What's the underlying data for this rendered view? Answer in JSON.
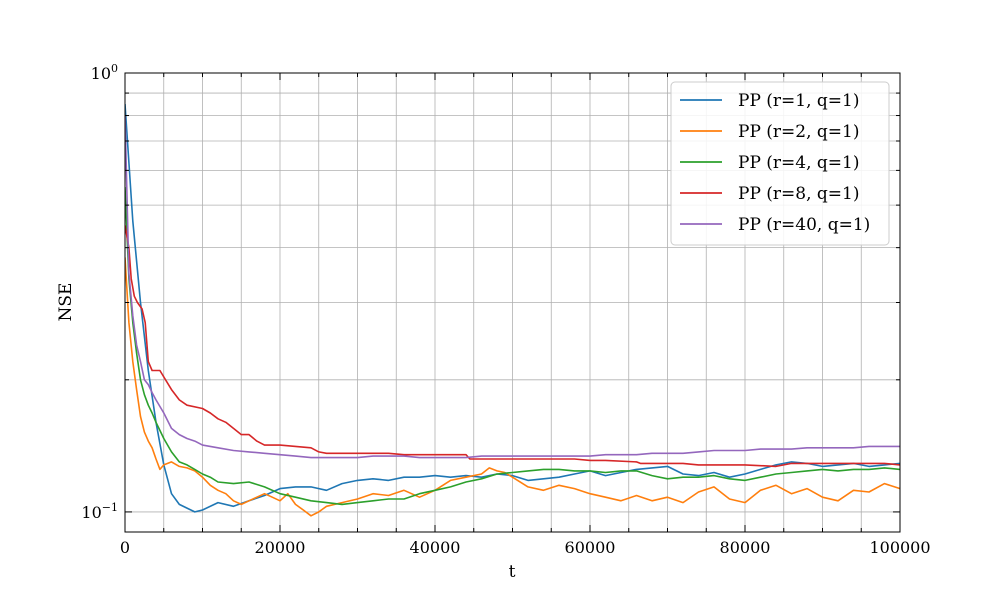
{
  "chart_data": {
    "type": "line",
    "title": "",
    "xlabel": "t",
    "ylabel": "NSE",
    "xlim": [
      0,
      100000
    ],
    "ylim": [
      0.09,
      1.0
    ],
    "y_scale": "log",
    "grid": true,
    "legend_position": "top-right",
    "x_ticks": [
      0,
      20000,
      40000,
      60000,
      80000,
      100000
    ],
    "x_tick_labels": [
      "0",
      "20000",
      "40000",
      "60000",
      "80000",
      "100000"
    ],
    "y_major_ticks": [
      {
        "value": 0.1,
        "base": "10",
        "exp": "−1"
      },
      {
        "value": 1.0,
        "base": "10",
        "exp": "0"
      }
    ],
    "series": [
      {
        "name": "PP (r=1, q=1)",
        "color": "#1f77b4",
        "x": [
          0,
          1000,
          2000,
          3000,
          4000,
          5000,
          6000,
          7000,
          8000,
          9000,
          10000,
          12000,
          14000,
          16000,
          18000,
          20000,
          22000,
          24000,
          26000,
          28000,
          30000,
          32000,
          34000,
          36000,
          38000,
          40000,
          42000,
          44000,
          46000,
          48000,
          50000,
          52000,
          54000,
          56000,
          58000,
          60000,
          62000,
          64000,
          66000,
          68000,
          70000,
          72000,
          74000,
          76000,
          78000,
          80000,
          82000,
          84000,
          86000,
          88000,
          90000,
          92000,
          94000,
          96000,
          98000,
          100000
        ],
        "y": [
          0.85,
          0.46,
          0.3,
          0.21,
          0.16,
          0.128,
          0.11,
          0.104,
          0.102,
          0.1,
          0.101,
          0.105,
          0.103,
          0.106,
          0.109,
          0.113,
          0.114,
          0.114,
          0.112,
          0.116,
          0.118,
          0.119,
          0.118,
          0.12,
          0.12,
          0.121,
          0.12,
          0.121,
          0.12,
          0.122,
          0.121,
          0.118,
          0.119,
          0.12,
          0.122,
          0.124,
          0.121,
          0.123,
          0.125,
          0.126,
          0.127,
          0.122,
          0.121,
          0.123,
          0.12,
          0.122,
          0.125,
          0.128,
          0.13,
          0.129,
          0.127,
          0.128,
          0.129,
          0.127,
          0.128,
          0.129
        ]
      },
      {
        "name": "PP (r=2, q=1)",
        "color": "#ff7f0e",
        "x": [
          0,
          500,
          1000,
          1500,
          2000,
          2500,
          3000,
          3500,
          4000,
          4500,
          5000,
          6000,
          7000,
          8000,
          9000,
          10000,
          11000,
          12000,
          13000,
          14000,
          15000,
          16000,
          17000,
          18000,
          19000,
          20000,
          21000,
          22000,
          23000,
          24000,
          25000,
          26000,
          28000,
          30000,
          32000,
          34000,
          36000,
          38000,
          40000,
          42000,
          44000,
          46000,
          47000,
          48000,
          49000,
          50000,
          52000,
          54000,
          56000,
          58000,
          60000,
          62000,
          64000,
          66000,
          68000,
          70000,
          72000,
          74000,
          76000,
          78000,
          80000,
          82000,
          84000,
          86000,
          88000,
          90000,
          92000,
          94000,
          96000,
          98000,
          100000
        ],
        "y": [
          0.38,
          0.27,
          0.22,
          0.19,
          0.165,
          0.152,
          0.145,
          0.14,
          0.132,
          0.125,
          0.128,
          0.13,
          0.127,
          0.126,
          0.124,
          0.12,
          0.115,
          0.112,
          0.11,
          0.106,
          0.104,
          0.106,
          0.108,
          0.11,
          0.108,
          0.106,
          0.11,
          0.104,
          0.101,
          0.098,
          0.1,
          0.103,
          0.105,
          0.107,
          0.11,
          0.109,
          0.112,
          0.108,
          0.112,
          0.118,
          0.12,
          0.122,
          0.126,
          0.124,
          0.123,
          0.12,
          0.114,
          0.112,
          0.115,
          0.113,
          0.11,
          0.108,
          0.106,
          0.109,
          0.106,
          0.108,
          0.105,
          0.111,
          0.114,
          0.107,
          0.105,
          0.112,
          0.115,
          0.11,
          0.113,
          0.108,
          0.106,
          0.112,
          0.111,
          0.116,
          0.113
        ]
      },
      {
        "name": "PP (r=4, q=1)",
        "color": "#2ca02c",
        "x": [
          0,
          500,
          1000,
          1500,
          2000,
          2500,
          3000,
          3500,
          4000,
          5000,
          6000,
          7000,
          8000,
          9000,
          10000,
          11000,
          12000,
          14000,
          16000,
          18000,
          20000,
          22000,
          24000,
          26000,
          28000,
          30000,
          32000,
          34000,
          36000,
          38000,
          40000,
          42000,
          44000,
          46000,
          48000,
          50000,
          52000,
          54000,
          56000,
          58000,
          60000,
          62000,
          64000,
          66000,
          68000,
          70000,
          72000,
          74000,
          76000,
          78000,
          80000,
          82000,
          84000,
          86000,
          88000,
          90000,
          92000,
          94000,
          96000,
          98000,
          100000
        ],
        "y": [
          0.55,
          0.34,
          0.27,
          0.23,
          0.2,
          0.185,
          0.175,
          0.168,
          0.16,
          0.147,
          0.137,
          0.13,
          0.128,
          0.125,
          0.122,
          0.12,
          0.117,
          0.116,
          0.117,
          0.114,
          0.11,
          0.108,
          0.106,
          0.105,
          0.104,
          0.105,
          0.106,
          0.107,
          0.107,
          0.11,
          0.112,
          0.114,
          0.117,
          0.119,
          0.122,
          0.123,
          0.124,
          0.125,
          0.125,
          0.124,
          0.124,
          0.123,
          0.124,
          0.124,
          0.121,
          0.119,
          0.12,
          0.12,
          0.121,
          0.119,
          0.118,
          0.12,
          0.122,
          0.123,
          0.124,
          0.125,
          0.124,
          0.125,
          0.125,
          0.126,
          0.125
        ]
      },
      {
        "name": "PP (r=8, q=1)",
        "color": "#d62728",
        "x": [
          0,
          500,
          800,
          1200,
          1600,
          2200,
          2600,
          3000,
          3500,
          4500,
          6000,
          7000,
          8000,
          10000,
          11000,
          12000,
          13000,
          14000,
          15000,
          16000,
          17000,
          18000,
          20000,
          22000,
          24000,
          25000,
          26000,
          28000,
          30000,
          34000,
          36000,
          38000,
          40000,
          44000,
          44500,
          48000,
          54000,
          58000,
          60000,
          62000,
          66000,
          66500,
          70000,
          72000,
          74000,
          76000,
          80000,
          84000,
          86000,
          88000,
          92000,
          96000,
          98000,
          100000
        ],
        "y": [
          0.45,
          0.4,
          0.34,
          0.31,
          0.3,
          0.29,
          0.27,
          0.22,
          0.21,
          0.21,
          0.19,
          0.18,
          0.175,
          0.172,
          0.168,
          0.163,
          0.16,
          0.155,
          0.15,
          0.15,
          0.145,
          0.142,
          0.142,
          0.141,
          0.14,
          0.137,
          0.136,
          0.136,
          0.136,
          0.136,
          0.135,
          0.135,
          0.135,
          0.135,
          0.132,
          0.132,
          0.132,
          0.132,
          0.131,
          0.131,
          0.13,
          0.129,
          0.129,
          0.129,
          0.128,
          0.128,
          0.128,
          0.127,
          0.129,
          0.129,
          0.129,
          0.129,
          0.129,
          0.128
        ]
      },
      {
        "name": "PP (r=40, q=1)",
        "color": "#9467bd",
        "x": [
          0,
          500,
          1000,
          1500,
          2000,
          2500,
          3000,
          3500,
          4000,
          5000,
          6000,
          7000,
          8000,
          9000,
          10000,
          12000,
          14000,
          16000,
          18000,
          20000,
          22000,
          24000,
          26000,
          28000,
          30000,
          32000,
          34000,
          36000,
          38000,
          40000,
          42000,
          44000,
          46000,
          48000,
          50000,
          52000,
          54000,
          56000,
          58000,
          60000,
          62000,
          64000,
          66000,
          68000,
          70000,
          72000,
          74000,
          76000,
          78000,
          80000,
          82000,
          84000,
          86000,
          88000,
          90000,
          92000,
          94000,
          96000,
          98000,
          100000
        ],
        "y": [
          0.8,
          0.35,
          0.28,
          0.24,
          0.22,
          0.2,
          0.195,
          0.187,
          0.18,
          0.168,
          0.155,
          0.15,
          0.147,
          0.145,
          0.142,
          0.14,
          0.138,
          0.137,
          0.136,
          0.135,
          0.134,
          0.133,
          0.133,
          0.133,
          0.133,
          0.134,
          0.134,
          0.134,
          0.133,
          0.133,
          0.133,
          0.133,
          0.134,
          0.134,
          0.134,
          0.134,
          0.134,
          0.134,
          0.134,
          0.134,
          0.135,
          0.135,
          0.135,
          0.136,
          0.136,
          0.136,
          0.137,
          0.138,
          0.138,
          0.138,
          0.139,
          0.139,
          0.139,
          0.14,
          0.14,
          0.14,
          0.14,
          0.141,
          0.141,
          0.141
        ]
      }
    ]
  }
}
